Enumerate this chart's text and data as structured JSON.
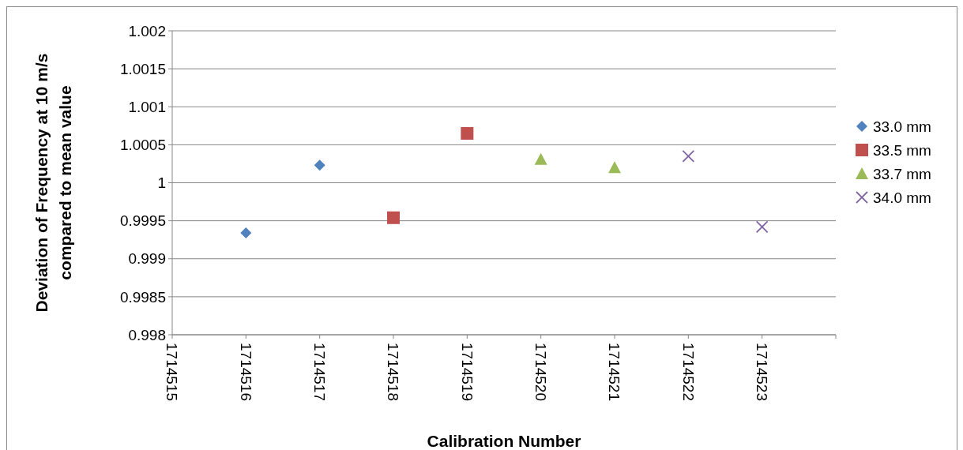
{
  "chart_data": {
    "type": "scatter",
    "xlabel": "Calibration Number",
    "ylabel": "Deviation of Frequency at 10 m/s\ncompared to mean value",
    "xlim": [
      1714515,
      1714524
    ],
    "xticks": [
      1714515,
      1714516,
      1714517,
      1714518,
      1714519,
      1714520,
      1714521,
      1714522,
      1714523,
      {
        "value": 1714524,
        "label": null
      }
    ],
    "ylim": [
      0.998,
      1.002
    ],
    "yticks": [
      0.998,
      0.9985,
      0.999,
      0.9995,
      1,
      1.0005,
      1.001,
      1.0015,
      1.002
    ],
    "grid": "y",
    "legend": "right",
    "series": [
      {
        "name": "33.0 mm",
        "color": "#4f81bd",
        "marker": "diamond",
        "x": [
          1714516,
          1714517
        ],
        "values": [
          0.99934,
          1.00023
        ]
      },
      {
        "name": "33.5 mm",
        "color": "#c0504d",
        "marker": "square",
        "x": [
          1714518,
          1714519
        ],
        "values": [
          0.99954,
          1.00065
        ]
      },
      {
        "name": "33.7 mm",
        "color": "#9bbb59",
        "marker": "triangle",
        "x": [
          1714520,
          1714521
        ],
        "values": [
          1.00031,
          1.0002
        ]
      },
      {
        "name": "34.0 mm",
        "color": "#8064a2",
        "marker": "cross",
        "x": [
          1714522,
          1714523
        ],
        "values": [
          1.00035,
          0.99942
        ]
      }
    ]
  }
}
